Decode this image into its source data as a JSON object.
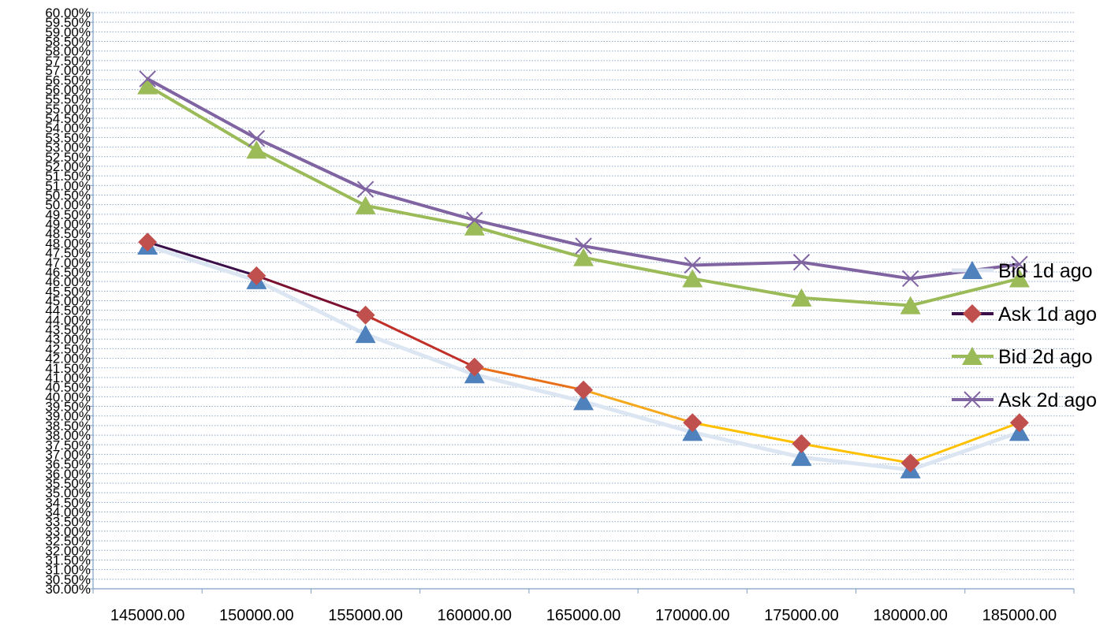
{
  "chart_data": {
    "type": "line",
    "title": "",
    "xlabel": "",
    "ylabel": "",
    "ylim": [
      0.3,
      0.6
    ],
    "y_tick_step": 0.005,
    "grid": "horizontal-dotted",
    "legend_position": "right",
    "x_tick_labels": [
      "145000.00",
      "150000.00",
      "155000.00",
      "160000.00",
      "165000.00",
      "170000.00",
      "175000.00",
      "180000.00",
      "185000.00"
    ],
    "points_x": [
      "145000.00",
      "150000.00",
      "155000.00",
      "160000.00",
      "165000.00",
      "170000.00",
      "175000.00",
      "180000.00",
      "185000.00"
    ],
    "series": [
      {
        "name": "Bid 1d ago",
        "marker": "triangle",
        "color": "#4F81BD",
        "line_color": "#DCE6F2",
        "values": [
          0.4785,
          0.4605,
          0.4325,
          0.4115,
          0.3975,
          0.3815,
          0.3685,
          0.362,
          0.3815
        ]
      },
      {
        "name": "Ask 1d ago",
        "marker": "diamond",
        "color": "#C0504D",
        "line_gradient": [
          "#3A0F4A",
          "#7A1030",
          "#C03028",
          "#E8701A",
          "#F5A81C",
          "#FFC000",
          "#FFC000",
          "#FFC000"
        ],
        "values": [
          0.4805,
          0.463,
          0.4425,
          0.4155,
          0.4035,
          0.3865,
          0.3755,
          0.3655,
          0.3865
        ]
      },
      {
        "name": "Bid 2d ago",
        "marker": "triangle",
        "color": "#9BBB59",
        "values": [
          0.562,
          0.5285,
          0.4995,
          0.4885,
          0.4725,
          0.4615,
          0.4515,
          0.4475,
          0.4615
        ]
      },
      {
        "name": "Ask 2d ago",
        "marker": "x",
        "color": "#8064A2",
        "values": [
          0.5655,
          0.5345,
          0.508,
          0.492,
          0.4785,
          0.4685,
          0.47,
          0.4615,
          0.469
        ]
      }
    ]
  }
}
